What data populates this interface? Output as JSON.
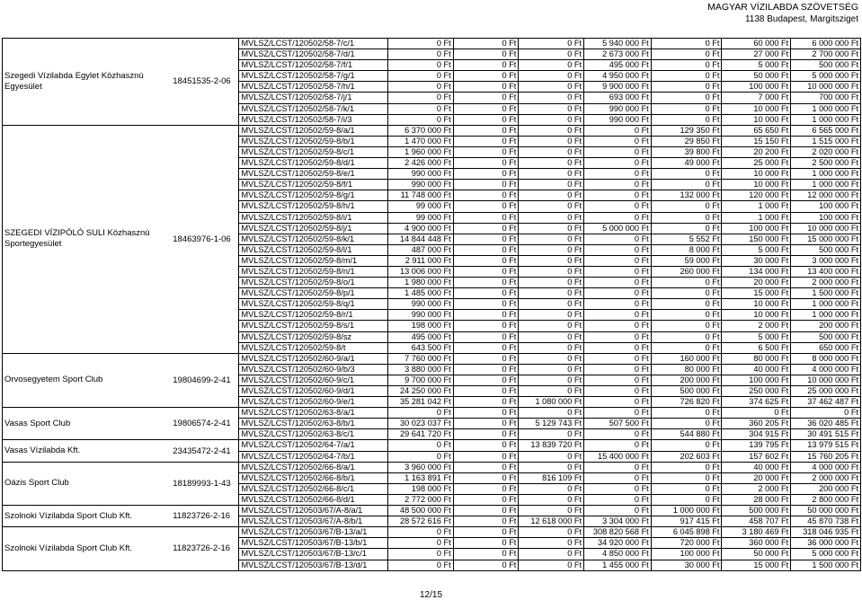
{
  "header": {
    "line1": "MAGYAR VÍZILABDA SZÖVETSÉG",
    "line2": "1138 Budapest, Margitsziget"
  },
  "footer": {
    "page": "12/15"
  },
  "groups": [
    {
      "name": "Szegedi Vízilabda Egylet Közhasznú Egyesület",
      "reg": "18451535-2-06",
      "rows": [
        [
          "MVLSZ/LCST/120502/58-7/c/1",
          "0 Ft",
          "0 Ft",
          "0 Ft",
          "5 940 000 Ft",
          "0 Ft",
          "60 000 Ft",
          "6 000 000 Ft"
        ],
        [
          "MVLSZ/LCST/120502/58-7/d/1",
          "0 Ft",
          "0 Ft",
          "0 Ft",
          "2 673 000 Ft",
          "0 Ft",
          "27 000 Ft",
          "2 700 000 Ft"
        ],
        [
          "MVLSZ/LCST/120502/58-7/f/1",
          "0 Ft",
          "0 Ft",
          "0 Ft",
          "495 000 Ft",
          "0 Ft",
          "5 000 Ft",
          "500 000 Ft"
        ],
        [
          "MVLSZ/LCST/120502/58-7/g/1",
          "0 Ft",
          "0 Ft",
          "0 Ft",
          "4 950 000 Ft",
          "0 Ft",
          "50 000 Ft",
          "5 000 000 Ft"
        ],
        [
          "MVLSZ/LCST/120502/58-7/h/1",
          "0 Ft",
          "0 Ft",
          "0 Ft",
          "9 900 000 Ft",
          "0 Ft",
          "100 000 Ft",
          "10 000 000 Ft"
        ],
        [
          "MVLSZ/LCST/120502/58-7/j/1",
          "0 Ft",
          "0 Ft",
          "0 Ft",
          "693 000 Ft",
          "0 Ft",
          "7 000 Ft",
          "700 000 Ft"
        ],
        [
          "MVLSZ/LCST/120502/58-7/k/1",
          "0 Ft",
          "0 Ft",
          "0 Ft",
          "990 000 Ft",
          "0 Ft",
          "10 000 Ft",
          "1 000 000 Ft"
        ],
        [
          "MVLSZ/LCST/120502/58-7/i/3",
          "0 Ft",
          "0 Ft",
          "0 Ft",
          "990 000 Ft",
          "0 Ft",
          "10 000 Ft",
          "1 000 000 Ft"
        ]
      ]
    },
    {
      "name": "SZEGEDI VÍZIPÓLÓ SULI Közhasznú Sportegyesület",
      "reg": "18463976-1-06",
      "rows": [
        [
          "MVLSZ/LCST/120502/59-8/a/1",
          "6 370 000 Ft",
          "0 Ft",
          "0 Ft",
          "0 Ft",
          "129 350 Ft",
          "65 650 Ft",
          "6 565 000 Ft"
        ],
        [
          "MVLSZ/LCST/120502/59-8/b/1",
          "1 470 000 Ft",
          "0 Ft",
          "0 Ft",
          "0 Ft",
          "29 850 Ft",
          "15 150 Ft",
          "1 515 000 Ft"
        ],
        [
          "MVLSZ/LCST/120502/59-8/c/1",
          "1 960 000 Ft",
          "0 Ft",
          "0 Ft",
          "0 Ft",
          "39 800 Ft",
          "20 200 Ft",
          "2 020 000 Ft"
        ],
        [
          "MVLSZ/LCST/120502/59-8/d/1",
          "2 426 000 Ft",
          "0 Ft",
          "0 Ft",
          "0 Ft",
          "49 000 Ft",
          "25 000 Ft",
          "2 500 000 Ft"
        ],
        [
          "MVLSZ/LCST/120502/59-8/e/1",
          "990 000 Ft",
          "0 Ft",
          "0 Ft",
          "0 Ft",
          "0 Ft",
          "10 000 Ft",
          "1 000 000 Ft"
        ],
        [
          "MVLSZ/LCST/120502/59-8/f/1",
          "990 000 Ft",
          "0 Ft",
          "0 Ft",
          "0 Ft",
          "0 Ft",
          "10 000 Ft",
          "1 000 000 Ft"
        ],
        [
          "MVLSZ/LCST/120502/59-8/g/1",
          "11 748 000 Ft",
          "0 Ft",
          "0 Ft",
          "0 Ft",
          "132 000 Ft",
          "120 000 Ft",
          "12 000 000 Ft"
        ],
        [
          "MVLSZ/LCST/120502/59-8/h/1",
          "99 000 Ft",
          "0 Ft",
          "0 Ft",
          "0 Ft",
          "0 Ft",
          "1 000 Ft",
          "100 000 Ft"
        ],
        [
          "MVLSZ/LCST/120502/59-8/i/1",
          "99 000 Ft",
          "0 Ft",
          "0 Ft",
          "0 Ft",
          "0 Ft",
          "1 000 Ft",
          "100 000 Ft"
        ],
        [
          "MVLSZ/LCST/120502/59-8/j/1",
          "4 900 000 Ft",
          "0 Ft",
          "0 Ft",
          "5 000 000 Ft",
          "0 Ft",
          "100 000 Ft",
          "10 000 000 Ft"
        ],
        [
          "MVLSZ/LCST/120502/59-8/k/1",
          "14 844 448 Ft",
          "0 Ft",
          "0 Ft",
          "0 Ft",
          "5 552 Ft",
          "150 000 Ft",
          "15 000 000 Ft"
        ],
        [
          "MVLSZ/LCST/120502/59-8/l/1",
          "487 000 Ft",
          "0 Ft",
          "0 Ft",
          "0 Ft",
          "8 000 Ft",
          "5 000 Ft",
          "500 000 Ft"
        ],
        [
          "MVLSZ/LCST/120502/59-8/m/1",
          "2 911 000 Ft",
          "0 Ft",
          "0 Ft",
          "0 Ft",
          "59 000 Ft",
          "30 000 Ft",
          "3 000 000 Ft"
        ],
        [
          "MVLSZ/LCST/120502/59-8/n/1",
          "13 006 000 Ft",
          "0 Ft",
          "0 Ft",
          "0 Ft",
          "260 000 Ft",
          "134 000 Ft",
          "13 400 000 Ft"
        ],
        [
          "MVLSZ/LCST/120502/59-8/o/1",
          "1 980 000 Ft",
          "0 Ft",
          "0 Ft",
          "0 Ft",
          "0 Ft",
          "20 000 Ft",
          "2 000 000 Ft"
        ],
        [
          "MVLSZ/LCST/120502/59-8/p/1",
          "1 485 000 Ft",
          "0 Ft",
          "0 Ft",
          "0 Ft",
          "0 Ft",
          "15 000 Ft",
          "1 500 000 Ft"
        ],
        [
          "MVLSZ/LCST/120502/59-8/q/1",
          "990 000 Ft",
          "0 Ft",
          "0 Ft",
          "0 Ft",
          "0 Ft",
          "10 000 Ft",
          "1 000 000 Ft"
        ],
        [
          "MVLSZ/LCST/120502/59-8/r/1",
          "990 000 Ft",
          "0 Ft",
          "0 Ft",
          "0 Ft",
          "0 Ft",
          "10 000 Ft",
          "1 000 000 Ft"
        ],
        [
          "MVLSZ/LCST/120502/59-8/s/1",
          "198 000 Ft",
          "0 Ft",
          "0 Ft",
          "0 Ft",
          "0 Ft",
          "2 000 Ft",
          "200 000 Ft"
        ],
        [
          "MVLSZ/LCST/120502/59-8/sz",
          "495 000 Ft",
          "0 Ft",
          "0 Ft",
          "0 Ft",
          "0 Ft",
          "5 000 Ft",
          "500 000 Ft"
        ],
        [
          "MVLSZ/LCST/120502/59-8/t",
          "643 500 Ft",
          "0 Ft",
          "0 Ft",
          "0 Ft",
          "0 Ft",
          "6 500 Ft",
          "650 000 Ft"
        ]
      ]
    },
    {
      "name": "Orvosegyetem Sport Club",
      "reg": "19804699-2-41",
      "rows": [
        [
          "MVLSZ/LCST/120502/60-9/a/1",
          "7 760 000 Ft",
          "0 Ft",
          "0 Ft",
          "0 Ft",
          "160 000 Ft",
          "80 000 Ft",
          "8 000 000 Ft"
        ],
        [
          "MVLSZ/LCST/120502/60-9/b/3",
          "3 880 000 Ft",
          "0 Ft",
          "0 Ft",
          "0 Ft",
          "80 000 Ft",
          "40 000 Ft",
          "4 000 000 Ft"
        ],
        [
          "MVLSZ/LCST/120502/60-9/c/1",
          "9 700 000 Ft",
          "0 Ft",
          "0 Ft",
          "0 Ft",
          "200 000 Ft",
          "100 000 Ft",
          "10 000 000 Ft"
        ],
        [
          "MVLSZ/LCST/120502/60-9/d/1",
          "24 250 000 Ft",
          "0 Ft",
          "0 Ft",
          "0 Ft",
          "500 000 Ft",
          "250 000 Ft",
          "25 000 000 Ft"
        ],
        [
          "MVLSZ/LCST/120502/60-9/e/1",
          "35 281 042 Ft",
          "0 Ft",
          "1 080 000 Ft",
          "0 Ft",
          "726 820 Ft",
          "374 625 Ft",
          "37 462 487 Ft"
        ]
      ]
    },
    {
      "name": "Vasas Sport Club",
      "reg": "19806574-2-41",
      "rows": [
        [
          "MVLSZ/LCST/120502/63-8/a/1",
          "0 Ft",
          "0 Ft",
          "0 Ft",
          "0 Ft",
          "0 Ft",
          "0 Ft",
          "0 Ft"
        ],
        [
          "MVLSZ/LCST/120502/63-8/b/1",
          "30 023 037 Ft",
          "0 Ft",
          "5 129 743 Ft",
          "507 500 Ft",
          "0 Ft",
          "360 205 Ft",
          "36 020 485 Ft"
        ],
        [
          "MVLSZ/LCST/120502/63-8/c/1",
          "29 641 720 Ft",
          "0 Ft",
          "0 Ft",
          "0 Ft",
          "544 880 Ft",
          "304 915 Ft",
          "30 491 515 Ft"
        ]
      ]
    },
    {
      "name": "Vasas Vízilabda Kft.",
      "reg": "23435472-2-41",
      "rows": [
        [
          "MVLSZ/LCST/120502/64-7/a/1",
          "0 Ft",
          "0 Ft",
          "13 839 720 Ft",
          "0 Ft",
          "0 Ft",
          "139 795 Ft",
          "13 979 515 Ft"
        ],
        [
          "MVLSZ/LCST/120502/64-7/b/1",
          "0 Ft",
          "0 Ft",
          "0 Ft",
          "15 400 000 Ft",
          "202 603 Ft",
          "157 602 Ft",
          "15 760 205 Ft"
        ]
      ]
    },
    {
      "name": "Oázis Sport Club",
      "reg": "18189993-1-43",
      "rows": [
        [
          "MVLSZ/LCST/120502/66-8/a/1",
          "3 960 000 Ft",
          "0 Ft",
          "0 Ft",
          "0 Ft",
          "0 Ft",
          "40 000 Ft",
          "4 000 000 Ft"
        ],
        [
          "MVLSZ/LCST/120502/66-8/b/1",
          "1 163 891 Ft",
          "0 Ft",
          "816 109 Ft",
          "0 Ft",
          "0 Ft",
          "20 000 Ft",
          "2 000 000 Ft"
        ],
        [
          "MVLSZ/LCST/120502/66-8/c/1",
          "198 000 Ft",
          "0 Ft",
          "0 Ft",
          "0 Ft",
          "0 Ft",
          "2 000 Ft",
          "200 000 Ft"
        ],
        [
          "MVLSZ/LCST/120502/66-8/d/1",
          "2 772 000 Ft",
          "0 Ft",
          "0 Ft",
          "0 Ft",
          "0 Ft",
          "28 000 Ft",
          "2 800 000 Ft"
        ]
      ]
    },
    {
      "name": "Szolnoki Vízilabda Sport Club Kft.",
      "reg": "11823726-2-16",
      "rows": [
        [
          "MVLSZ/LCST/120503/67/A-8/a/1",
          "48 500 000 Ft",
          "0 Ft",
          "0 Ft",
          "0 Ft",
          "1 000 000 Ft",
          "500 000 Ft",
          "50 000 000 Ft"
        ],
        [
          "MVLSZ/LCST/120503/67/A-8/b/1",
          "28 572 616 Ft",
          "0 Ft",
          "12 618 000 Ft",
          "3 304 000 Ft",
          "917 415 Ft",
          "458 707 Ft",
          "45 870 738 Ft"
        ]
      ]
    },
    {
      "name": "Szolnoki Vízilabda Sport Club Kft.",
      "reg": "11823726-2-16",
      "rows": [
        [
          "MVLSZ/LCST/120503/67/B-13/a/1",
          "0 Ft",
          "0 Ft",
          "0 Ft",
          "308 820 568 Ft",
          "6 045 898 Ft",
          "3 180 469 Ft",
          "318 046 935 Ft"
        ],
        [
          "MVLSZ/LCST/120503/67/B-13/b/1",
          "0 Ft",
          "0 Ft",
          "0 Ft",
          "34 920 000 Ft",
          "720 000 Ft",
          "360 000 Ft",
          "36 000 000 Ft"
        ],
        [
          "MVLSZ/LCST/120503/67/B-13/c/1",
          "0 Ft",
          "0 Ft",
          "0 Ft",
          "4 850 000 Ft",
          "100 000 Ft",
          "50 000 Ft",
          "5 000 000 Ft"
        ],
        [
          "MVLSZ/LCST/120503/67/B-13/d/1",
          "0 Ft",
          "0 Ft",
          "0 Ft",
          "1 455 000 Ft",
          "30 000 Ft",
          "15 000 Ft",
          "1 500 000 Ft"
        ]
      ]
    }
  ]
}
